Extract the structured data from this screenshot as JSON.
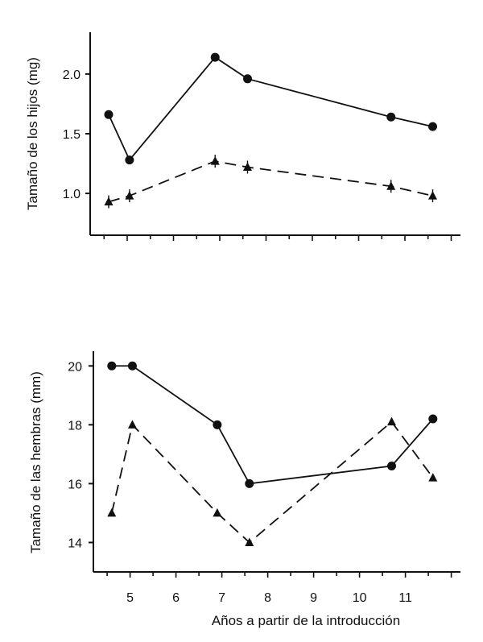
{
  "chart_data": [
    {
      "type": "line",
      "title": "",
      "xlabel": "",
      "ylabel": "Tamaño de los hijos (mg)",
      "xlim": [
        4.2,
        12.2
      ],
      "ylim": [
        0.65,
        2.35
      ],
      "yticks": [
        1.0,
        1.5,
        2.0
      ],
      "ytick_labels": [
        "1.0",
        "1.5",
        "2.0"
      ],
      "show_x_tick_labels": false,
      "grid": false,
      "series": [
        {
          "style": "solid",
          "marker": "circle",
          "x": [
            4.6,
            5.05,
            6.9,
            7.6,
            10.7,
            11.6
          ],
          "y": [
            1.66,
            1.28,
            2.14,
            1.96,
            1.64,
            1.56
          ]
        },
        {
          "style": "dashed",
          "marker": "triangle",
          "x": [
            4.6,
            5.05,
            6.9,
            7.6,
            10.7,
            11.6
          ],
          "y": [
            0.93,
            0.98,
            1.27,
            1.22,
            1.06,
            0.98
          ]
        }
      ]
    },
    {
      "type": "line",
      "title": "",
      "xlabel": "Años a partir de la introducción",
      "ylabel": "Tamaño de las hembras (mm)",
      "xlim": [
        4.2,
        12.2
      ],
      "ylim": [
        13.0,
        20.5
      ],
      "yticks": [
        14,
        16,
        18,
        20
      ],
      "ytick_labels": [
        "14",
        "16",
        "18",
        "20"
      ],
      "xticks": [
        5,
        6,
        7,
        8,
        9,
        10,
        11
      ],
      "xtick_labels": [
        "5",
        "6",
        "7",
        "8",
        "9",
        "10",
        "11"
      ],
      "grid": false,
      "series": [
        {
          "style": "solid",
          "marker": "circle",
          "x": [
            4.6,
            5.05,
            6.9,
            7.6,
            10.7,
            11.6
          ],
          "y": [
            20.0,
            20.0,
            18.0,
            16.0,
            16.6,
            18.2
          ]
        },
        {
          "style": "dashed",
          "marker": "triangle",
          "x": [
            4.6,
            5.05,
            6.9,
            7.6,
            10.7,
            11.6
          ],
          "y": [
            15.0,
            18.0,
            15.0,
            14.0,
            18.1,
            16.2
          ]
        }
      ]
    }
  ]
}
